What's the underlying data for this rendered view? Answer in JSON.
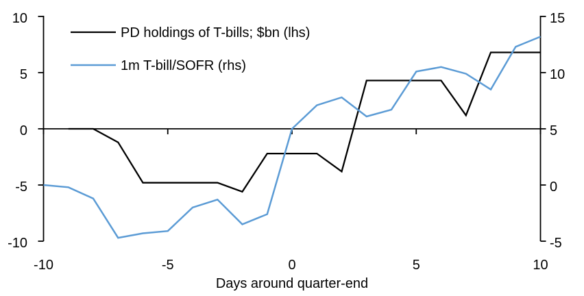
{
  "chart_data": {
    "type": "line",
    "xlabel": "Days around quarter-end",
    "x_range": [
      -10,
      10
    ],
    "x_ticks": [
      -10,
      -5,
      0,
      5,
      10
    ],
    "left_axis": {
      "range": [
        -10,
        10
      ],
      "ticks": [
        10,
        5,
        0,
        -5,
        -10
      ]
    },
    "right_axis": {
      "range": [
        -5,
        15
      ],
      "ticks": [
        15,
        10,
        5,
        0,
        -5
      ]
    },
    "grid": false,
    "legend_position": "top-left",
    "series": [
      {
        "name": "PD holdings of T-bills; $bn (lhs)",
        "axis": "lhs",
        "color": "#000000",
        "x": [
          -9,
          -8,
          -7,
          -6,
          -5,
          -4,
          -3,
          -2,
          -1,
          0,
          1,
          2,
          3,
          4,
          5,
          6,
          7,
          8,
          9,
          10
        ],
        "values": [
          0.0,
          0.0,
          -1.2,
          -4.8,
          -4.8,
          -4.8,
          -4.8,
          -5.6,
          -2.2,
          -2.2,
          -2.2,
          -3.8,
          4.3,
          4.3,
          4.3,
          4.3,
          1.2,
          6.8,
          6.8,
          6.8
        ]
      },
      {
        "name": "1m T-bill/SOFR (rhs)",
        "axis": "rhs",
        "color": "#5B9BD5",
        "x": [
          -10,
          -9,
          -8,
          -7,
          -6,
          -5,
          -4,
          -3,
          -2,
          -1,
          0,
          1,
          2,
          3,
          4,
          5,
          6,
          7,
          8,
          9,
          10
        ],
        "values": [
          0.0,
          -0.2,
          -1.2,
          -4.7,
          -4.3,
          -4.1,
          -2.0,
          -1.3,
          -3.5,
          -2.6,
          5.0,
          7.1,
          7.8,
          6.1,
          6.7,
          10.1,
          10.5,
          9.9,
          8.5,
          12.3,
          13.2
        ]
      }
    ]
  }
}
